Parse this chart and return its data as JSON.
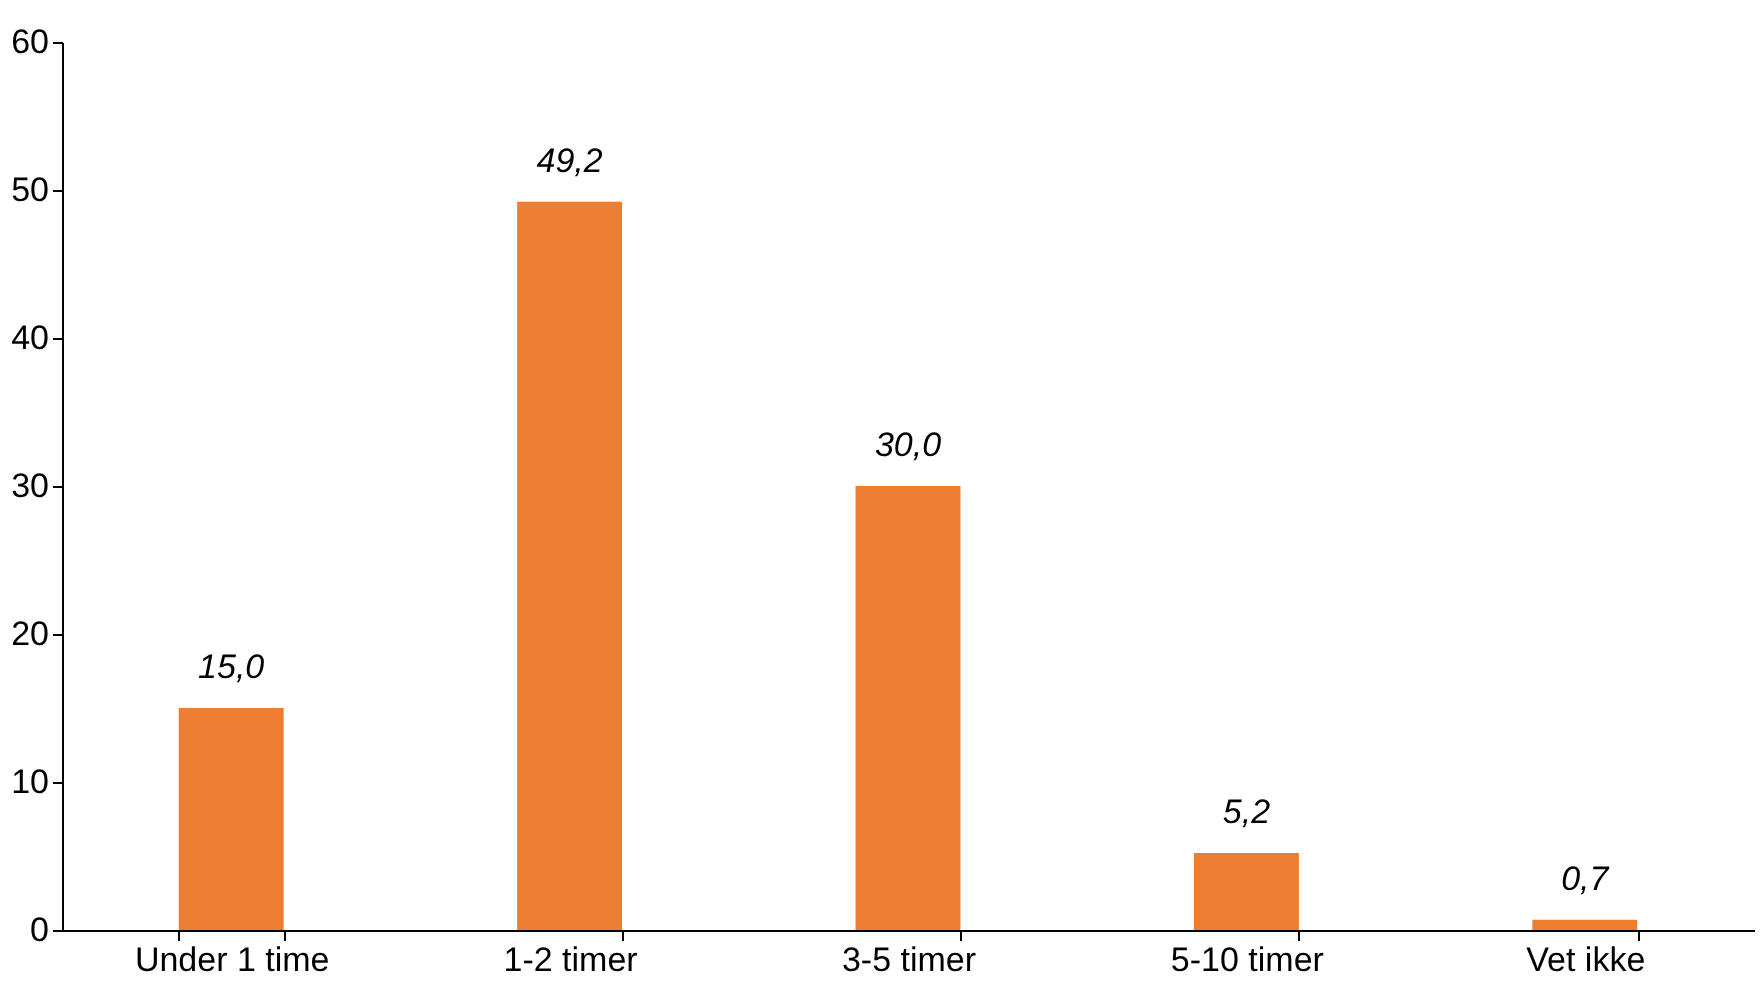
{
  "chart_data": {
    "type": "bar",
    "categories": [
      "Under 1 time",
      "1-2 timer",
      "3-5 timer",
      "5-10 timer",
      "Vet ikke"
    ],
    "values": [
      15.0,
      49.2,
      30.0,
      5.2,
      0.7
    ],
    "value_labels": [
      "15,0",
      "49,2",
      "30,0",
      "5,2",
      "0,7"
    ],
    "color": "#ed7d31",
    "ylim": [
      0,
      60
    ],
    "yticks": [
      0,
      10,
      20,
      30,
      40,
      50,
      60
    ]
  }
}
